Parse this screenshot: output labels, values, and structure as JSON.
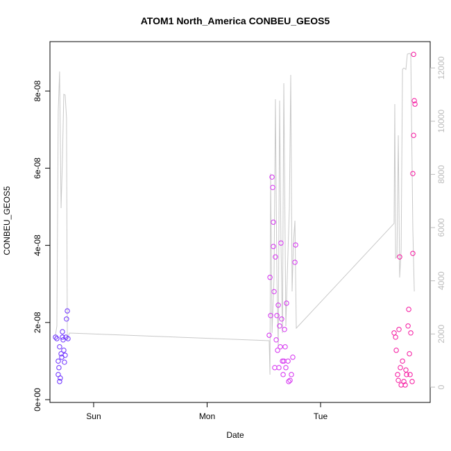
{
  "chart_data": {
    "type": "scatter",
    "title": "ATOM1 North_America CONBEU_GEOS5",
    "xlabel": "Date",
    "ylabel": "CONBEU_GEOS5",
    "xlim": [
      -0.385,
      2.966
    ],
    "xticks": [
      {
        "value": 0,
        "label": "Sun"
      },
      {
        "value": 1,
        "label": "Mon"
      },
      {
        "value": 2,
        "label": "Tue"
      }
    ],
    "ylim": [
      -7.2e-10,
      9.28e-08
    ],
    "yticks": [
      {
        "value": 0,
        "label": "0e+00"
      },
      {
        "value": 2e-08,
        "label": "2e-08"
      },
      {
        "value": 4e-08,
        "label": "4e-08"
      },
      {
        "value": 6e-08,
        "label": "6e-08"
      },
      {
        "value": 8e-08,
        "label": "8e-08"
      }
    ],
    "y2lim": [
      -574,
      12991
    ],
    "y2ticks": [
      0,
      2000,
      4000,
      6000,
      8000,
      10000,
      12000
    ],
    "series": [
      {
        "type": "scatter",
        "color": "#6a2cff",
        "x": [
          -0.336,
          -0.324,
          -0.312,
          -0.312,
          -0.3,
          -0.3,
          -0.287,
          -0.275,
          -0.275,
          -0.263,
          -0.257,
          -0.251,
          -0.245,
          -0.239,
          -0.232,
          -0.226,
          -0.306,
          -0.294,
          -0.281,
          -0.269
        ],
        "values": [
          1.62e-08,
          1.58e-08,
          1e-08,
          6.5e-09,
          4.7e-09,
          1.37e-08,
          1.19e-08,
          1.62e-08,
          1.76e-08,
          1.28e-08,
          9.7e-09,
          1.15e-08,
          1.62e-08,
          2.09e-08,
          2.3e-08,
          1.58e-08,
          8.3e-09,
          5.6e-09,
          1.1e-08,
          1.55e-08
        ]
      },
      {
        "type": "scatter",
        "color": "#d42cf0",
        "x": [
          1.547,
          1.554,
          1.56,
          1.572,
          1.578,
          1.584,
          1.59,
          1.602,
          1.615,
          1.621,
          1.627,
          1.639,
          1.645,
          1.651,
          1.664,
          1.67,
          1.682,
          1.688,
          1.7,
          1.713,
          1.719,
          1.731,
          1.743,
          1.755,
          1.774,
          1.78,
          1.596,
          1.609,
          1.633,
          1.657,
          1.676,
          1.694,
          1.584
        ],
        "values": [
          1.67e-08,
          3.17e-08,
          2.18e-08,
          5.77e-08,
          5.5e-08,
          3.97e-08,
          2.8e-08,
          3.7e-08,
          2.18e-08,
          1.28e-08,
          2.45e-08,
          1.91e-08,
          1.37e-08,
          4.06e-08,
          1e-08,
          6.5e-09,
          1.82e-08,
          1.37e-08,
          2.5e-08,
          1e-08,
          4.7e-09,
          5e-09,
          6.5e-09,
          1.1e-08,
          3.56e-08,
          4.01e-08,
          8.3e-09,
          1.55e-08,
          8.3e-09,
          2.09e-08,
          1e-08,
          8.3e-09,
          4.6e-08
        ]
      },
      {
        "type": "scatter",
        "color": "#f5139e",
        "x": [
          2.648,
          2.661,
          2.667,
          2.679,
          2.685,
          2.691,
          2.703,
          2.71,
          2.722,
          2.734,
          2.746,
          2.758,
          2.771,
          2.777,
          2.783,
          2.789,
          2.795,
          2.807,
          2.813,
          2.813,
          2.82,
          2.826,
          2.832,
          2.82,
          2.697,
          2.752
        ],
        "values": [
          1.73e-08,
          1.62e-08,
          1.28e-08,
          6.5e-09,
          5e-09,
          1.82e-08,
          8.3e-09,
          3.8e-09,
          1e-08,
          4.7e-09,
          3.8e-09,
          6.5e-09,
          1.91e-08,
          2.34e-08,
          1.19e-08,
          6.5e-09,
          1.73e-08,
          4.7e-09,
          3.79e-08,
          5.86e-08,
          6.85e-08,
          7.75e-08,
          7.66e-08,
          8.95e-08,
          3.7e-08,
          7.7e-09
        ]
      },
      {
        "type": "line",
        "axis": "y2",
        "color": "#c8c8c8",
        "x": [
          -0.343,
          -0.324,
          -0.312,
          -0.3,
          -0.287,
          -0.275,
          -0.263,
          -0.251,
          -0.239,
          -0.232,
          -0.214,
          1.547,
          1.554,
          1.56,
          1.572,
          1.59,
          1.602,
          1.615,
          1.627,
          1.639,
          1.651,
          1.664,
          1.676,
          1.694,
          1.706,
          1.725,
          1.737,
          1.749,
          1.761,
          1.774,
          1.786,
          2.648,
          2.654,
          2.661,
          2.673,
          2.685,
          2.697,
          2.71,
          2.722,
          2.734,
          2.752,
          2.765,
          2.783,
          2.795,
          2.813,
          2.826
        ],
        "values": [
          1774,
          2296,
          10383,
          11870,
          6730,
          8557,
          11009,
          10983,
          10122,
          1774,
          2035,
          1748,
          470,
          8035,
          2035,
          4122,
          10826,
          4122,
          1513,
          10774,
          5426,
          2035,
          11426,
          2296,
          4122,
          6730,
          11739,
          3600,
          5426,
          6261,
          2217,
          6157,
          10643,
          4852,
          4904,
          9470,
          4122,
          5165,
          11948,
          12000,
          11948,
          12522,
          12548,
          12522,
          5948,
          3600
        ]
      }
    ]
  }
}
